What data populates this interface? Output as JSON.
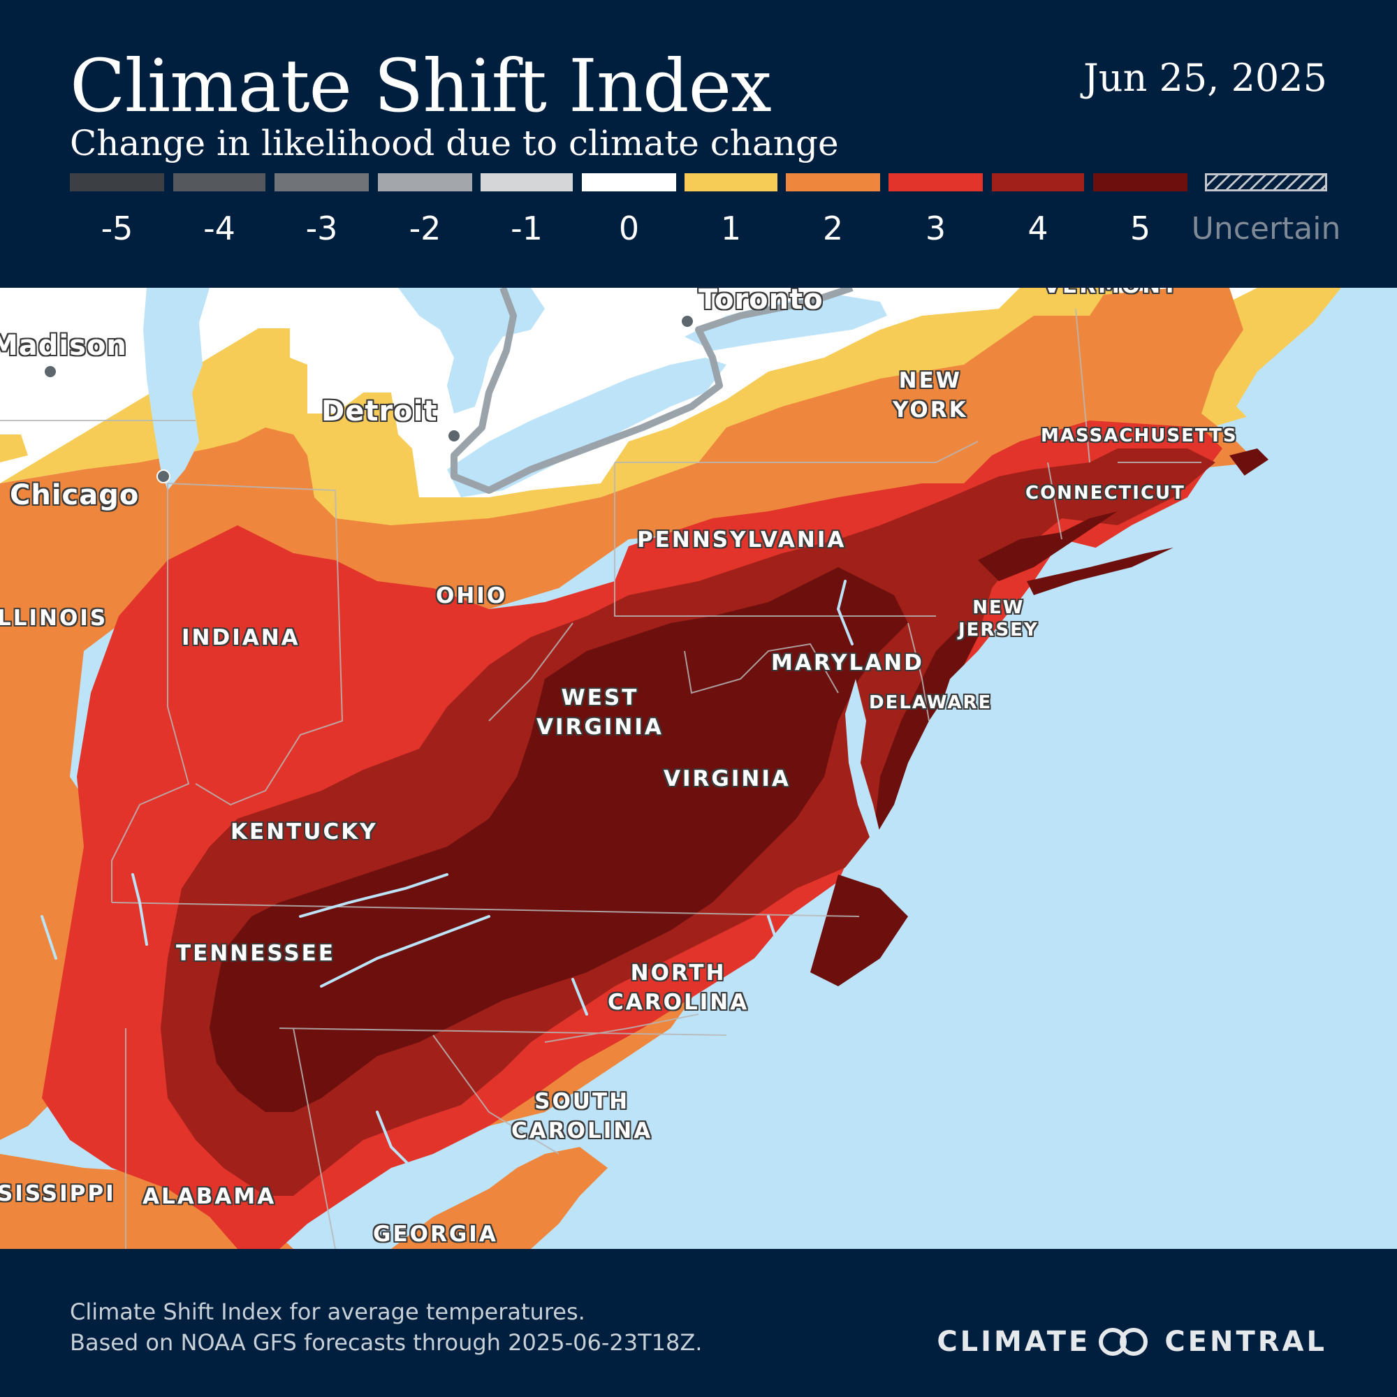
{
  "header": {
    "title": "Climate Shift Index",
    "subtitle": "Change in likelihood due to climate change",
    "date": "Jun 25, 2025"
  },
  "legend": {
    "items": [
      {
        "label": "-5",
        "color": "#3c3f43"
      },
      {
        "label": "-4",
        "color": "#55585c"
      },
      {
        "label": "-3",
        "color": "#707479"
      },
      {
        "label": "-2",
        "color": "#a3a7ab"
      },
      {
        "label": "-1",
        "color": "#d4d6d8"
      },
      {
        "label": "0",
        "color": "#ffffff"
      },
      {
        "label": "1",
        "color": "#f6cc56"
      },
      {
        "label": "2",
        "color": "#ee873d"
      },
      {
        "label": "3",
        "color": "#e2342a"
      },
      {
        "label": "4",
        "color": "#a1211a"
      },
      {
        "label": "5",
        "color": "#6c0f0d"
      }
    ],
    "uncertain_label": "Uncertain"
  },
  "map": {
    "states": {
      "new_york": "NEW\nYORK",
      "massachusetts": "MASSACHUSETTS",
      "connecticut": "CONNECTICUT",
      "pennsylvania": "PENNSYLVANIA",
      "ohio": "OHIO",
      "illinois": "LLINOIS",
      "indiana": "INDIANA",
      "new_jersey": "NEW\nJERSEY",
      "maryland": "MARYLAND",
      "delaware": "DELAWARE",
      "west_virginia": "WEST\nVIRGINIA",
      "virginia": "VIRGINIA",
      "kentucky": "KENTUCKY",
      "tennessee": "TENNESSEE",
      "north_carolina": "NORTH\nCAROLINA",
      "south_carolina": "SOUTH\nCAROLINA",
      "mississippi": "SISSIPPI",
      "alabama": "ALABAMA",
      "georgia": "GEORGIA",
      "vermont": "VERMONT"
    },
    "cities": {
      "toronto": "Toronto",
      "madison": "Madison",
      "detroit": "Detroit",
      "chicago": "Chicago"
    }
  },
  "footer": {
    "line1": "Climate Shift Index for average temperatures.",
    "line2": "Based on NOAA GFS forecasts through 2025-06-23T18Z.",
    "brand_left": "CLIMATE",
    "brand_right": "CENTRAL"
  }
}
